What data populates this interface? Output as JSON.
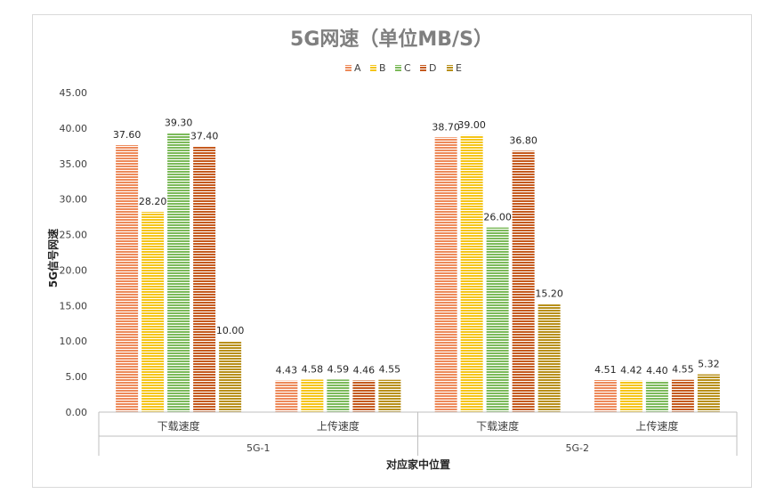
{
  "chart_data": {
    "type": "bar",
    "title": "5G网速（单位MB/S）",
    "xlabel": "对应家中位置",
    "ylabel": "5G信号网速",
    "ylim": [
      0,
      45
    ],
    "yticks": [
      "0.00",
      "5.00",
      "10.00",
      "15.00",
      "20.00",
      "25.00",
      "30.00",
      "35.00",
      "40.00",
      "45.00"
    ],
    "grid": false,
    "legend_position": "top",
    "groups": [
      {
        "name": "5G-1",
        "categories": [
          "下载速度",
          "上传速度"
        ]
      },
      {
        "name": "5G-2",
        "categories": [
          "下载速度",
          "上传速度"
        ]
      }
    ],
    "categories": [
      "下载速度",
      "上传速度",
      "下载速度",
      "上传速度"
    ],
    "series": [
      {
        "name": "A",
        "color": "#ed8a5a",
        "values": [
          37.6,
          4.43,
          38.7,
          4.51
        ]
      },
      {
        "name": "B",
        "color": "#f5c518",
        "values": [
          28.2,
          4.58,
          39.0,
          4.42
        ]
      },
      {
        "name": "C",
        "color": "#7cba5a",
        "values": [
          39.3,
          4.59,
          26.0,
          4.4
        ]
      },
      {
        "name": "D",
        "color": "#c55a1e",
        "values": [
          37.4,
          4.46,
          36.8,
          4.55
        ]
      },
      {
        "name": "E",
        "color": "#b8901a",
        "values": [
          10.0,
          4.55,
          15.2,
          5.32
        ]
      }
    ],
    "data_labels": [
      [
        "37.60",
        "4.43",
        "38.70",
        "4.51"
      ],
      [
        "28.20",
        "4.58",
        "39.00",
        "4.42"
      ],
      [
        "39.30",
        "4.59",
        "26.00",
        "4.40"
      ],
      [
        "37.40",
        "4.46",
        "36.80",
        "4.55"
      ],
      [
        "10.00",
        "4.55",
        "15.20",
        "5.32"
      ]
    ]
  }
}
